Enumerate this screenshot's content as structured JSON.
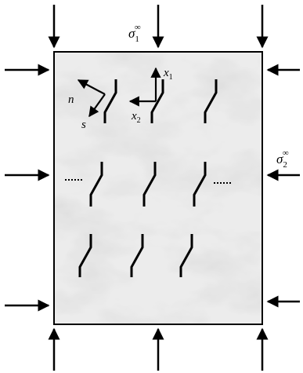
{
  "labels": {
    "sigma1": "σ",
    "sigma1_sub": "1",
    "sigma1_sup": "∞",
    "sigma2": "σ",
    "sigma2_sub": "2",
    "sigma2_sup": "∞",
    "x1": "x",
    "x1_sub": "1",
    "x2": "x",
    "x2_sub": "2",
    "n": "n",
    "s": "s"
  },
  "colors": {
    "ink": "#000000",
    "specimen_base": "#e6e6e6",
    "vein": "#9a9a9a"
  },
  "counts": {
    "top_arrows": 3,
    "bottom_arrows": 3,
    "left_arrows": 3,
    "right_arrows": 3,
    "crack_rows": 3,
    "cracks_per_row": 3
  }
}
